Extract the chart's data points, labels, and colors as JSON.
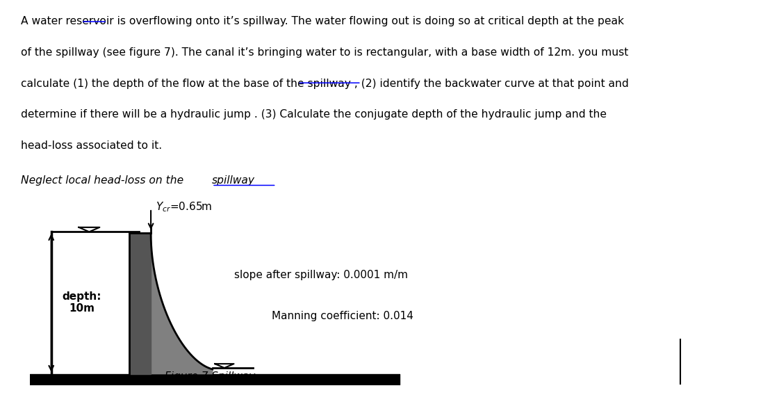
{
  "fig_caption": "Figure 7 Spillway",
  "label_ycr": "Ycr=0.65m",
  "label_depth": "depth:\n10m",
  "label_slope": "slope after spillway: 0.0001 m/m",
  "label_manning": "Manning coefficient: 0.014",
  "bg_color": "#ffffff",
  "gray_fill": "#808080",
  "dark_fill": "#555555",
  "text_color": "#000000",
  "line1": "A water reservoir is overflowing onto it’s spillway. The water flowing out is doing so at critical depth at the peak",
  "line2": "of the spillway (see figure 7). The canal it’s bringing water to is rectangular, with a base width of 12m. you must",
  "line3": "calculate (1) the depth of the flow at the base of the spillway , (2) identify the backwater curve at that point and",
  "line4": "determine if there will be a hydraulic jump . (3) Calculate the conjugate depth of the hydraulic jump and the",
  "line5": "head-loss associated to it.",
  "italic_prefix": "Neglect local head-loss on the ",
  "italic_underlined": "spillway",
  "underline_its": "it’s",
  "underline_spillway_comma": "spillway ,"
}
